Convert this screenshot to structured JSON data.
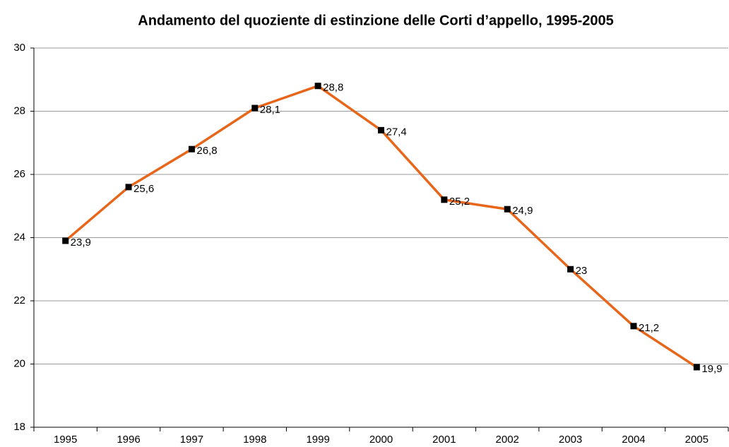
{
  "chart_data": {
    "type": "line",
    "title": "Andamento del quoziente di estinzione delle Corti d’appello, 1995-2005",
    "categories": [
      "1995",
      "1996",
      "1997",
      "1998",
      "1999",
      "2000",
      "2001",
      "2002",
      "2003",
      "2004",
      "2005"
    ],
    "series": [
      {
        "name": "Quoziente di estinzione",
        "color": "#e8661a",
        "values": [
          23.9,
          25.6,
          26.8,
          28.1,
          28.8,
          27.4,
          25.2,
          24.9,
          23,
          21.2,
          19.9
        ],
        "value_labels": [
          "23,9",
          "25,6",
          "26,8",
          "28,1",
          "28,8",
          "27,4",
          "25,2",
          "24,9",
          "23",
          "21,2",
          "19,9"
        ]
      }
    ],
    "ylim": [
      18,
      30
    ],
    "yticks": [
      18,
      20,
      22,
      24,
      26,
      28,
      30
    ],
    "grid": true
  }
}
